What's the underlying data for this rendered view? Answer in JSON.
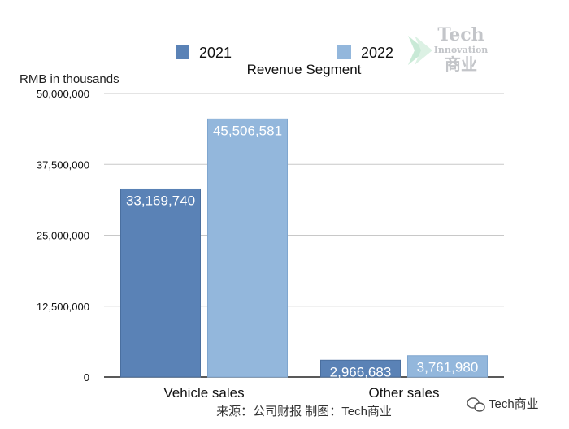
{
  "chart_data": {
    "type": "bar",
    "title": "Revenue Segment",
    "ylabel": "RMB in thousands",
    "xlabel": "",
    "categories": [
      "Vehicle sales",
      "Other sales"
    ],
    "series": [
      {
        "name": "2021",
        "values": [
          33169740,
          2966683
        ],
        "labels": [
          "33,169,740",
          "2,966,683"
        ],
        "color": "#5a82b6"
      },
      {
        "name": "2022",
        "values": [
          45506581,
          3761980
        ],
        "labels": [
          "45,506,581",
          "3,761,980"
        ],
        "color": "#93b7dc"
      }
    ],
    "ylim": [
      0,
      50000000
    ],
    "yticks": [
      0,
      12500000,
      25000000,
      37500000,
      50000000
    ],
    "ytick_labels": [
      "0",
      "12,500,000",
      "25,000,000",
      "37,500,000",
      "50,000,000"
    ],
    "grid": true,
    "legend_position": "top"
  },
  "watermark": {
    "line1": "Tech",
    "line2": "Innovation",
    "line3": "商业"
  },
  "footer": {
    "source": "来源：公司财报 制图：Tech商业",
    "account": "Tech商业"
  }
}
